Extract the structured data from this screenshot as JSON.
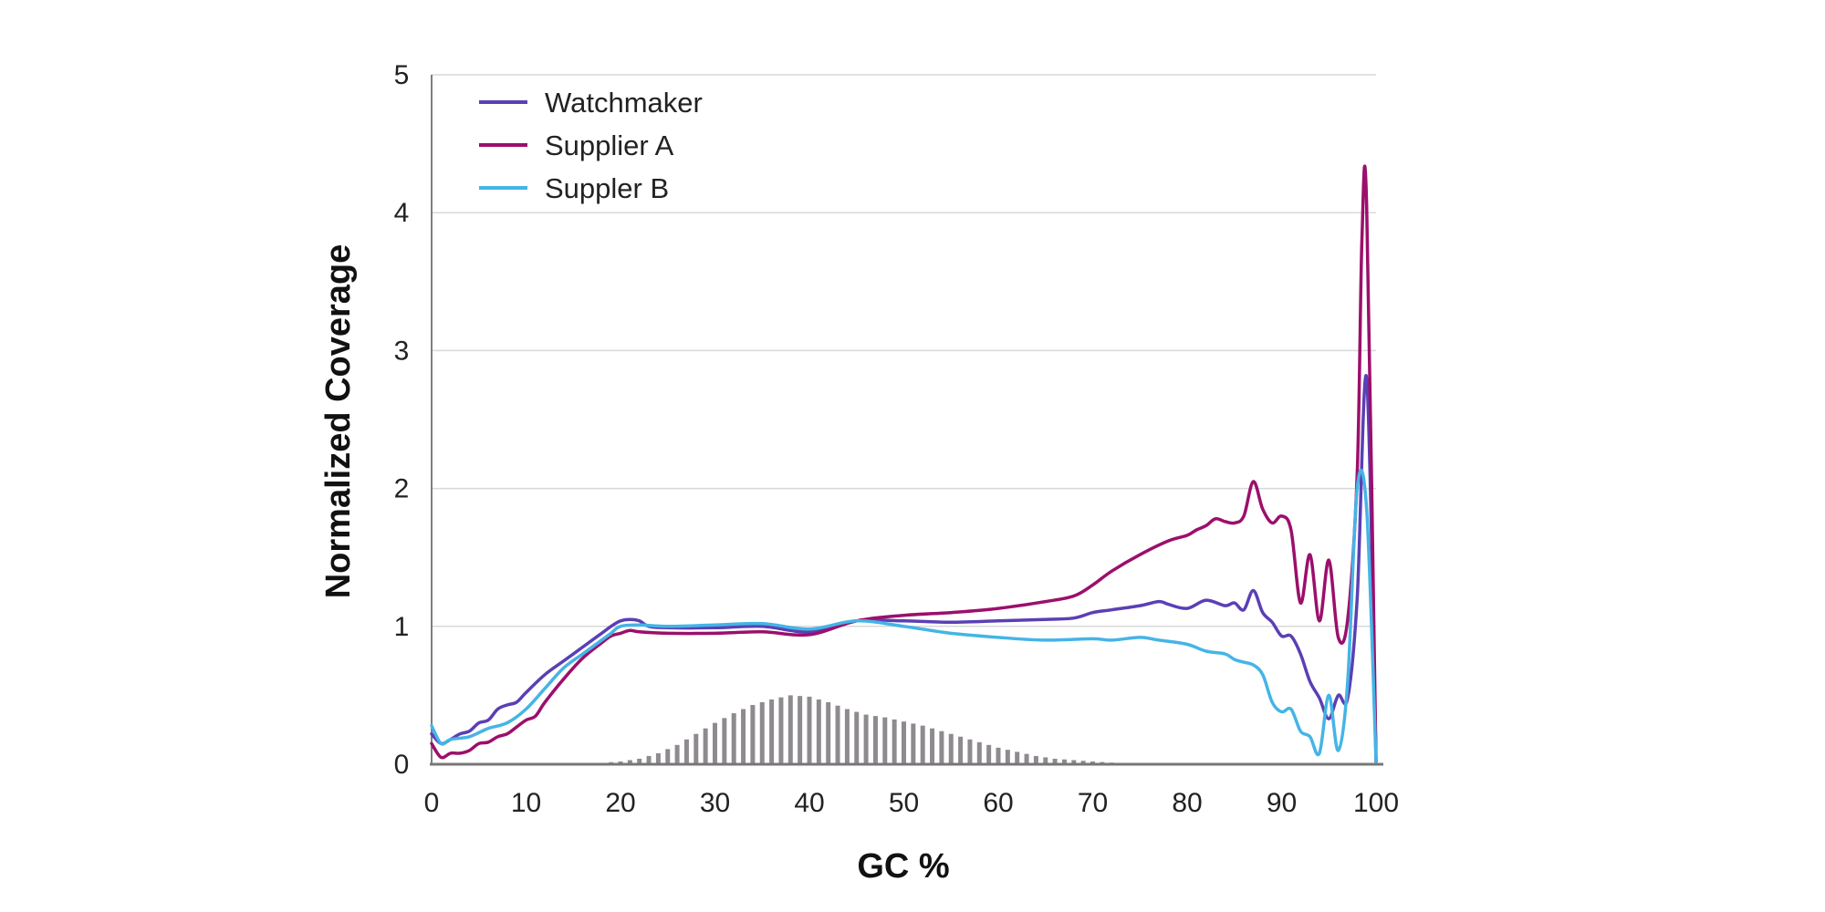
{
  "chart_data": {
    "type": "line",
    "title": "",
    "xlabel": "GC %",
    "ylabel": "Normalized Coverage",
    "xlim": [
      0,
      100
    ],
    "ylim": [
      0,
      5
    ],
    "x_ticks": [
      "0",
      "10",
      "20",
      "30",
      "40",
      "50",
      "60",
      "70",
      "80",
      "90",
      "100"
    ],
    "y_ticks": [
      "0",
      "1",
      "2",
      "3",
      "4",
      "5"
    ],
    "grid": "horizontal",
    "legend_position": "top-left",
    "colors": {
      "Watchmaker": "#5b3fb4",
      "Supplier A": "#9c0f6b",
      "Suppler B": "#45b4e6",
      "distribution": "#8f8a8f"
    },
    "series": [
      {
        "name": "Watchmaker",
        "color": "#5b3fb4",
        "x": [
          0,
          1,
          2,
          3,
          4,
          5,
          6,
          7,
          8,
          9,
          10,
          12,
          14,
          16,
          18,
          19,
          20,
          21,
          22,
          23,
          25,
          30,
          35,
          40,
          45,
          50,
          55,
          60,
          65,
          68,
          70,
          72,
          75,
          77,
          78,
          80,
          82,
          84,
          85,
          86,
          87,
          88,
          89,
          90,
          91,
          92,
          93,
          94,
          95,
          96,
          97,
          98,
          99,
          100
        ],
        "y": [
          0.22,
          0.15,
          0.18,
          0.22,
          0.24,
          0.3,
          0.32,
          0.4,
          0.43,
          0.45,
          0.52,
          0.65,
          0.75,
          0.85,
          0.95,
          1.0,
          1.04,
          1.05,
          1.04,
          1.0,
          0.99,
          0.99,
          1.0,
          0.96,
          1.04,
          1.04,
          1.03,
          1.04,
          1.05,
          1.06,
          1.1,
          1.12,
          1.15,
          1.18,
          1.16,
          1.13,
          1.19,
          1.15,
          1.17,
          1.12,
          1.26,
          1.1,
          1.03,
          0.93,
          0.93,
          0.8,
          0.6,
          0.48,
          0.33,
          0.5,
          0.48,
          1.2,
          2.8,
          0.02
        ]
      },
      {
        "name": "Supplier A",
        "color": "#9c0f6b",
        "x": [
          0,
          1,
          2,
          3,
          4,
          5,
          6,
          7,
          8,
          9,
          10,
          11,
          12,
          14,
          16,
          18,
          19,
          20,
          21,
          22,
          25,
          30,
          35,
          40,
          45,
          50,
          55,
          60,
          65,
          68,
          70,
          72,
          75,
          78,
          80,
          81,
          82,
          83,
          84,
          85,
          86,
          87,
          88,
          89,
          90,
          91,
          92,
          93,
          94,
          95,
          96,
          97,
          98,
          98.5,
          99,
          100
        ],
        "y": [
          0.15,
          0.05,
          0.08,
          0.08,
          0.1,
          0.15,
          0.16,
          0.2,
          0.22,
          0.27,
          0.32,
          0.35,
          0.45,
          0.62,
          0.77,
          0.88,
          0.93,
          0.95,
          0.97,
          0.96,
          0.95,
          0.95,
          0.96,
          0.94,
          1.04,
          1.08,
          1.1,
          1.13,
          1.18,
          1.22,
          1.3,
          1.4,
          1.52,
          1.62,
          1.66,
          1.7,
          1.73,
          1.78,
          1.76,
          1.75,
          1.8,
          2.05,
          1.85,
          1.75,
          1.8,
          1.7,
          1.17,
          1.52,
          1.04,
          1.48,
          0.92,
          1.05,
          2.1,
          3.8,
          4.05,
          0.02
        ]
      },
      {
        "name": "Suppler B",
        "color": "#45b4e6",
        "x": [
          0,
          1,
          2,
          4,
          6,
          8,
          10,
          12,
          14,
          16,
          18,
          19,
          20,
          22,
          25,
          30,
          35,
          40,
          45,
          50,
          55,
          60,
          65,
          70,
          72,
          75,
          77,
          80,
          82,
          84,
          85,
          86,
          87,
          88,
          89,
          90,
          91,
          92,
          93,
          94,
          95,
          96,
          97,
          98,
          99,
          100
        ],
        "y": [
          0.28,
          0.15,
          0.18,
          0.2,
          0.26,
          0.3,
          0.4,
          0.55,
          0.7,
          0.8,
          0.9,
          0.95,
          1.0,
          1.01,
          1.0,
          1.01,
          1.02,
          0.98,
          1.04,
          1.0,
          0.95,
          0.92,
          0.9,
          0.91,
          0.9,
          0.92,
          0.9,
          0.87,
          0.82,
          0.8,
          0.76,
          0.74,
          0.72,
          0.65,
          0.45,
          0.38,
          0.4,
          0.24,
          0.2,
          0.08,
          0.5,
          0.1,
          0.6,
          2.0,
          1.85,
          0.02
        ]
      },
      {
        "name": "distribution",
        "type": "bar",
        "color": "#8f8a8f",
        "x": [
          16,
          18,
          20,
          22,
          24,
          26,
          28,
          30,
          32,
          34,
          36,
          38,
          40,
          42,
          44,
          46,
          48,
          50,
          52,
          54,
          56,
          58,
          60,
          62,
          64,
          66,
          68,
          70,
          72,
          74,
          76
        ],
        "y": [
          0.005,
          0.01,
          0.02,
          0.04,
          0.08,
          0.14,
          0.22,
          0.3,
          0.37,
          0.43,
          0.47,
          0.5,
          0.49,
          0.45,
          0.4,
          0.36,
          0.34,
          0.31,
          0.28,
          0.24,
          0.2,
          0.16,
          0.12,
          0.09,
          0.06,
          0.04,
          0.03,
          0.02,
          0.012,
          0.006,
          0.003
        ]
      }
    ]
  }
}
